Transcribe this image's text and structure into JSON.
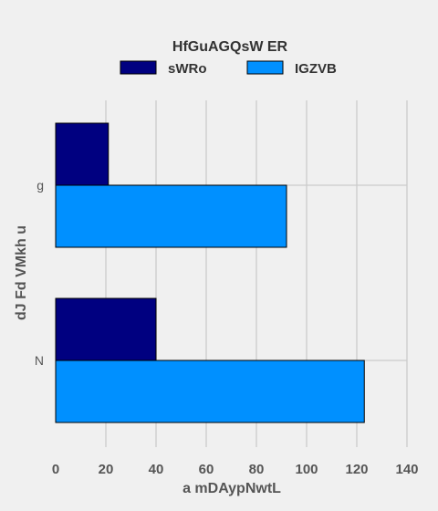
{
  "chart_data": {
    "type": "bar",
    "orientation": "horizontal",
    "categories": [
      "N",
      "g"
    ],
    "series": [
      {
        "name": "sWRo",
        "values": [
          40,
          21
        ],
        "color": "#000080"
      },
      {
        "name": "IGZVB",
        "values": [
          123,
          92
        ],
        "color": "#0090ff"
      }
    ],
    "legend": {
      "title": "HfGuAGQsW ER",
      "placement": "top-center"
    },
    "xlabel": "a mDAypNwtL",
    "ylabel": "dJ  Fd VMkh u",
    "xlim": [
      0,
      140
    ],
    "xticks": [
      "0",
      "20",
      "40",
      "60",
      "80",
      "100",
      "120",
      "140"
    ],
    "grid": true,
    "background": "#f0f0f0",
    "grid_color": "#cbcbcb",
    "edge_color": "#000000"
  }
}
